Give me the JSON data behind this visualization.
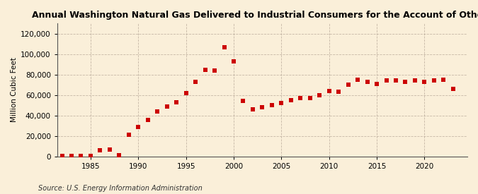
{
  "title": "Annual Washington Natural Gas Delivered to Industrial Consumers for the Account of Others",
  "ylabel": "Million Cubic Feet",
  "source": "Source: U.S. Energy Information Administration",
  "background_color": "#faefd9",
  "marker_color": "#cc0000",
  "years": [
    1982,
    1983,
    1984,
    1985,
    1986,
    1987,
    1988,
    1989,
    1990,
    1991,
    1992,
    1993,
    1994,
    1995,
    1996,
    1997,
    1998,
    1999,
    2000,
    2001,
    2002,
    2003,
    2004,
    2005,
    2006,
    2007,
    2008,
    2009,
    2010,
    2011,
    2012,
    2013,
    2014,
    2015,
    2016,
    2017,
    2018,
    2019,
    2020,
    2021,
    2022,
    2023
  ],
  "values": [
    500,
    300,
    200,
    500,
    6000,
    7000,
    1000,
    21000,
    29000,
    36000,
    44000,
    49000,
    53000,
    62000,
    73000,
    85000,
    84000,
    107000,
    93000,
    54000,
    46000,
    48000,
    50000,
    52000,
    55000,
    57000,
    57000,
    60000,
    64000,
    63000,
    70000,
    75000,
    73000,
    71000,
    74000,
    74000,
    73000,
    74000,
    73000,
    74000,
    75000,
    66000
  ],
  "ylim": [
    0,
    130000
  ],
  "yticks": [
    0,
    20000,
    40000,
    60000,
    80000,
    100000,
    120000
  ],
  "xlim": [
    1981.5,
    2024.5
  ],
  "xticks": [
    1985,
    1990,
    1995,
    2000,
    2005,
    2010,
    2015,
    2020
  ],
  "title_fontsize": 9,
  "axis_fontsize": 7.5,
  "source_fontsize": 7,
  "marker_size": 15
}
